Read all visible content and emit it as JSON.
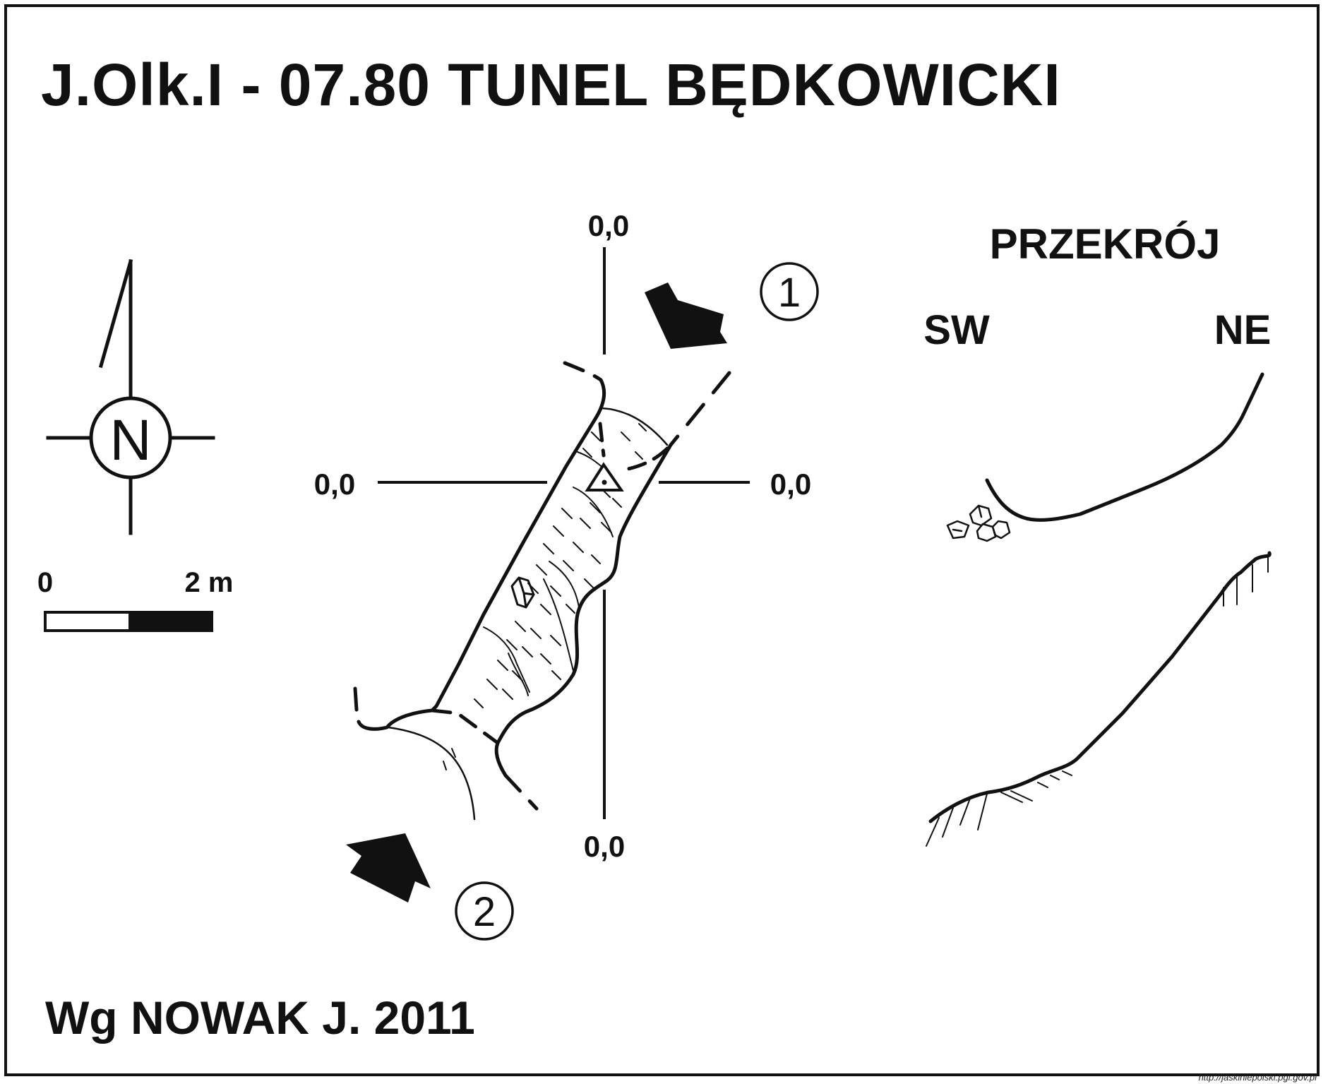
{
  "title": "J.Olk.I - 07.80  TUNEL BĘDKOWICKI",
  "author": "Wg NOWAK J. 2011",
  "source_url": "http://jaskiniepolski.pgi.gov.pl",
  "north_arrow": {
    "label": "N"
  },
  "scale_bar": {
    "start_label": "0",
    "end_label": "2 m"
  },
  "plan": {
    "datum_labels": {
      "top": "0,0",
      "left": "0,0",
      "right": "0,0",
      "bottom": "0,0"
    },
    "section_markers": [
      {
        "label": "1"
      },
      {
        "label": "2"
      }
    ]
  },
  "cross_section": {
    "heading": "PRZEKRÓJ",
    "left_label": "SW",
    "right_label": "NE"
  }
}
